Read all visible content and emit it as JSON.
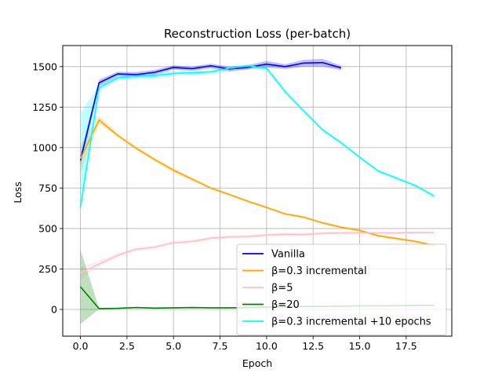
{
  "chart_data": {
    "type": "line",
    "title": "Reconstruction Loss (per-batch)",
    "xlabel": "Epoch",
    "ylabel": "Loss",
    "xlim": [
      -0.95,
      19.95
    ],
    "ylim": [
      -165,
      1630
    ],
    "xticks": [
      0,
      2.5,
      5,
      7.5,
      10,
      12.5,
      15,
      17.5
    ],
    "xtick_labels": [
      "0.0",
      "2.5",
      "5.0",
      "7.5",
      "10.0",
      "12.5",
      "15.0",
      "17.5"
    ],
    "yticks": [
      0,
      250,
      500,
      750,
      1000,
      1250,
      1500
    ],
    "ytick_labels": [
      "0",
      "250",
      "500",
      "750",
      "1000",
      "1250",
      "1500"
    ],
    "grid": true,
    "legend_position": "lower-right",
    "series": [
      {
        "name": "Vanilla",
        "color": "#0000ff",
        "x": [
          0,
          1,
          2,
          3,
          4,
          5,
          6,
          7,
          8,
          9,
          10,
          11,
          12,
          13,
          14
        ],
        "y": [
          920,
          1400,
          1455,
          1450,
          1465,
          1495,
          1487,
          1505,
          1485,
          1495,
          1515,
          1500,
          1522,
          1525,
          1492
        ],
        "lower": [
          880,
          1380,
          1442,
          1432,
          1450,
          1482,
          1474,
          1490,
          1470,
          1482,
          1495,
          1485,
          1500,
          1500,
          1478
        ],
        "upper": [
          960,
          1420,
          1468,
          1466,
          1480,
          1508,
          1500,
          1518,
          1500,
          1510,
          1535,
          1515,
          1542,
          1548,
          1506
        ]
      },
      {
        "name": "β=0.3 incremental",
        "color": "#ffa500",
        "x": [
          0,
          1,
          2,
          3,
          4,
          5,
          6,
          7,
          8,
          9,
          10,
          11,
          12,
          13,
          14,
          15,
          16,
          17,
          18,
          19
        ],
        "y": [
          930,
          1170,
          1075,
          995,
          925,
          860,
          805,
          750,
          710,
          668,
          630,
          590,
          570,
          535,
          508,
          488,
          455,
          438,
          420,
          395
        ],
        "lower": [
          840,
          1150,
          1063,
          985,
          915,
          848,
          795,
          742,
          702,
          660,
          622,
          582,
          562,
          528,
          500,
          480,
          448,
          430,
          412,
          388
        ],
        "upper": [
          1020,
          1195,
          1088,
          1006,
          936,
          872,
          816,
          758,
          718,
          676,
          638,
          598,
          578,
          542,
          516,
          496,
          462,
          446,
          428,
          402
        ]
      },
      {
        "name": "β=5",
        "color": "#ffc0cb",
        "x": [
          0,
          1,
          2,
          3,
          4,
          5,
          6,
          7,
          8,
          9,
          10,
          11,
          12,
          13,
          14,
          15,
          16,
          17,
          18,
          19
        ],
        "y": [
          225,
          280,
          335,
          372,
          385,
          412,
          420,
          440,
          448,
          450,
          460,
          465,
          463,
          470,
          473,
          473,
          473,
          473,
          475,
          475
        ],
        "lower": [
          185,
          265,
          322,
          362,
          375,
          402,
          410,
          430,
          438,
          440,
          450,
          455,
          453,
          462,
          465,
          466,
          467,
          467,
          469,
          469
        ],
        "upper": [
          265,
          300,
          348,
          384,
          396,
          424,
          430,
          452,
          458,
          460,
          470,
          475,
          474,
          480,
          482,
          481,
          480,
          480,
          482,
          482
        ]
      },
      {
        "name": "β=20",
        "color": "#008000",
        "x": [
          0,
          1,
          2,
          3,
          4,
          5,
          6,
          7,
          8,
          9,
          10,
          11,
          12,
          13,
          14,
          15,
          16,
          17,
          18,
          19
        ],
        "y": [
          140,
          5,
          7,
          12,
          8,
          10,
          12,
          10,
          10,
          12,
          14,
          16,
          18,
          19,
          20,
          22,
          22,
          23,
          25,
          25
        ],
        "lower": [
          -90,
          2,
          4,
          9,
          5,
          7,
          9,
          7,
          7,
          9,
          11,
          13,
          15,
          16,
          17,
          19,
          19,
          20,
          22,
          22
        ],
        "upper": [
          370,
          8,
          10,
          15,
          11,
          13,
          15,
          13,
          13,
          15,
          17,
          19,
          21,
          22,
          23,
          25,
          25,
          26,
          28,
          28
        ]
      },
      {
        "name": "β=0.3 incremental +10 epochs",
        "color": "#00ffff",
        "x": [
          0,
          1,
          2,
          3,
          4,
          5,
          6,
          7,
          8,
          9,
          10,
          11,
          12,
          13,
          14,
          15,
          16,
          17,
          18,
          19
        ],
        "y": [
          630,
          1370,
          1432,
          1440,
          1445,
          1458,
          1462,
          1468,
          1490,
          1505,
          1490,
          1345,
          1225,
          1110,
          1030,
          940,
          855,
          810,
          765,
          700
        ],
        "lower": [
          600,
          1355,
          1418,
          1425,
          1430,
          1445,
          1450,
          1456,
          1480,
          1495,
          1478,
          1335,
          1215,
          1102,
          1022,
          932,
          847,
          802,
          757,
          692
        ],
        "upper": [
          1210,
          1390,
          1446,
          1455,
          1460,
          1471,
          1474,
          1480,
          1500,
          1515,
          1502,
          1355,
          1235,
          1118,
          1038,
          948,
          863,
          818,
          773,
          708
        ]
      }
    ]
  }
}
